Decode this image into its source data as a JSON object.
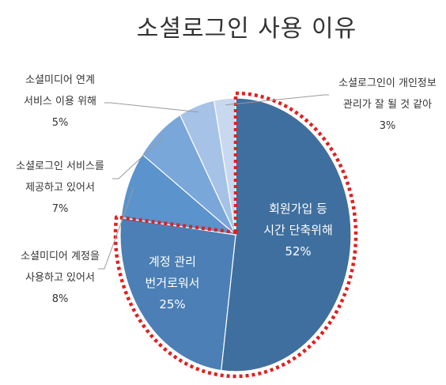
{
  "chart_data": {
    "type": "pie",
    "title": "소셜로그인 사용 이유",
    "slices": [
      {
        "label_lines": [
          "회원가입 등",
          "시간 단축위해"
        ],
        "value": 52,
        "value_label": "52%",
        "color": "#3f6f9e",
        "label_pos": "inside"
      },
      {
        "label_lines": [
          "계정 관리",
          "번거로워서"
        ],
        "value": 25,
        "value_label": "25%",
        "color": "#4b7fb5",
        "label_pos": "inside"
      },
      {
        "label_lines": [
          "소셜미디어 계정을",
          "사용하고 있어서"
        ],
        "value": 8,
        "value_label": "8%",
        "color": "#5b93cc",
        "label_pos": "outside-left"
      },
      {
        "label_lines": [
          "소셜로그인 서비스를",
          "제공하고 있어서"
        ],
        "value": 7,
        "value_label": "7%",
        "color": "#7aa7da",
        "label_pos": "outside-left"
      },
      {
        "label_lines": [
          "소셜미디어 연계",
          "서비스 이용 위해"
        ],
        "value": 5,
        "value_label": "5%",
        "color": "#a6c2e6",
        "label_pos": "outside-left"
      },
      {
        "label_lines": [
          "소셜로그인이 개인정보",
          "관리가 잘 될 것 같아"
        ],
        "value": 3,
        "value_label": "3%",
        "color": "#c8d8ef",
        "label_pos": "outside-right"
      }
    ],
    "highlight": "dotted-red-outline",
    "highlight_color": "#e02020"
  }
}
